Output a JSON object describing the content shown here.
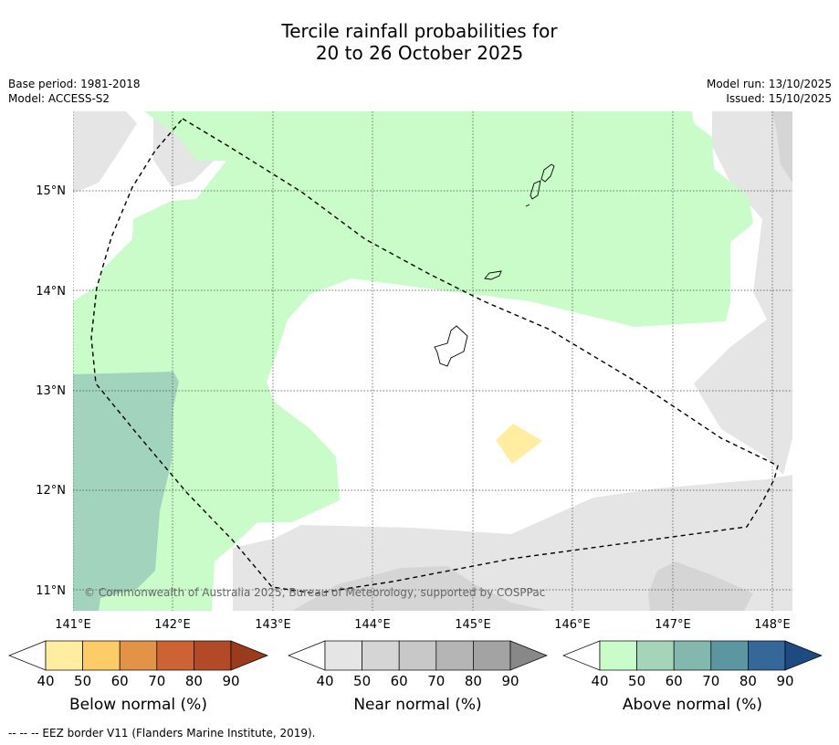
{
  "title_line1": "Tercile rainfall probabilities for",
  "title_line2": "20 to 26 October 2025",
  "base_period": "Base period: 1981-2018",
  "model": "Model: ACCESS-S2",
  "model_run": "Model run: 13/10/2025",
  "issued": "Issued: 15/10/2025",
  "copyright": "© Commonwealth of Australia 2025, Bureau of Meteorology, supported by COSPPac",
  "lat_labels": [
    "15°N",
    "14°N",
    "13°N",
    "12°N",
    "11°N"
  ],
  "lon_labels": [
    "141°E",
    "142°E",
    "143°E",
    "144°E",
    "145°E",
    "146°E",
    "147°E",
    "148°E"
  ],
  "colorbars": [
    {
      "label": "Below normal (%)",
      "ticks": [
        "40",
        "50",
        "60",
        "70",
        "80",
        "90"
      ],
      "colors": [
        "#ffeda0",
        "#fecc66",
        "#e29346",
        "#cd6333",
        "#b24a27"
      ],
      "low": "#ffffff",
      "high": "#9b3b1e"
    },
    {
      "label": "Near normal (%)",
      "ticks": [
        "40",
        "50",
        "60",
        "70",
        "80",
        "90"
      ],
      "colors": [
        "#e5e5e5",
        "#d5d5d5",
        "#c8c8c8",
        "#b5b5b5",
        "#a3a3a3"
      ],
      "low": "#ffffff",
      "high": "#888888"
    },
    {
      "label": "Above normal (%)",
      "ticks": [
        "40",
        "50",
        "60",
        "70",
        "80",
        "90"
      ],
      "colors": [
        "#c9fcc9",
        "#a5d5b9",
        "#82b8ad",
        "#5b96a1",
        "#356799"
      ],
      "low": "#ffffff",
      "high": "#1d4a80"
    }
  ],
  "footnote": "--  --  -- EEZ border V11 (Flanders Marine Institute, 2019)."
}
